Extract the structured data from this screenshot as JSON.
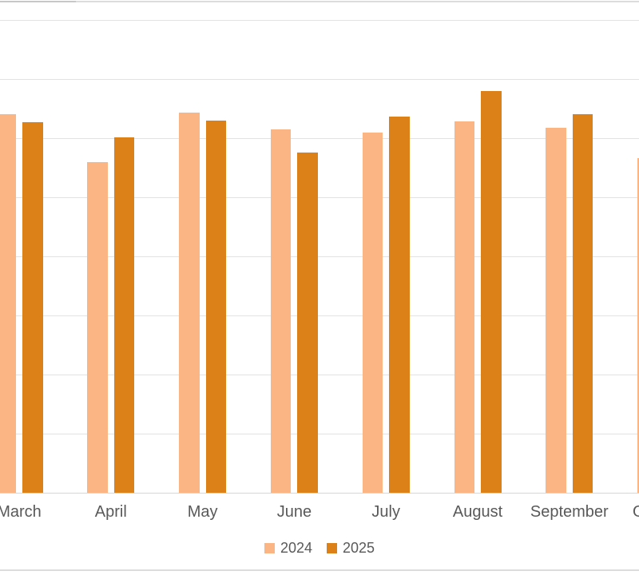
{
  "chart_data": {
    "type": "bar",
    "title": "",
    "xlabel": "",
    "ylabel": "",
    "categories": [
      "March",
      "April",
      "May",
      "June",
      "July",
      "August",
      "September",
      "October"
    ],
    "series": [
      {
        "name": "2024",
        "color": "#FBB584",
        "values": [
          6.41,
          5.59,
          6.43,
          6.15,
          6.09,
          6.28,
          6.18,
          5.66
        ]
      },
      {
        "name": "2025",
        "color": "#DB8118",
        "values": [
          6.27,
          6.01,
          6.3,
          5.76,
          6.36,
          6.8,
          6.41,
          null
        ]
      }
    ],
    "ylim": [
      0,
      8
    ],
    "y_axis_tick_labels_visible": false,
    "gridline_interval": 1,
    "grid": true,
    "legend_position": "bottom-center",
    "axis_label_color": "#595959",
    "gridline_color": "#E2E2E2"
  },
  "legend": {
    "items": [
      {
        "label": "2024",
        "color": "#FBB584"
      },
      {
        "label": "2025",
        "color": "#DB8118"
      }
    ]
  }
}
